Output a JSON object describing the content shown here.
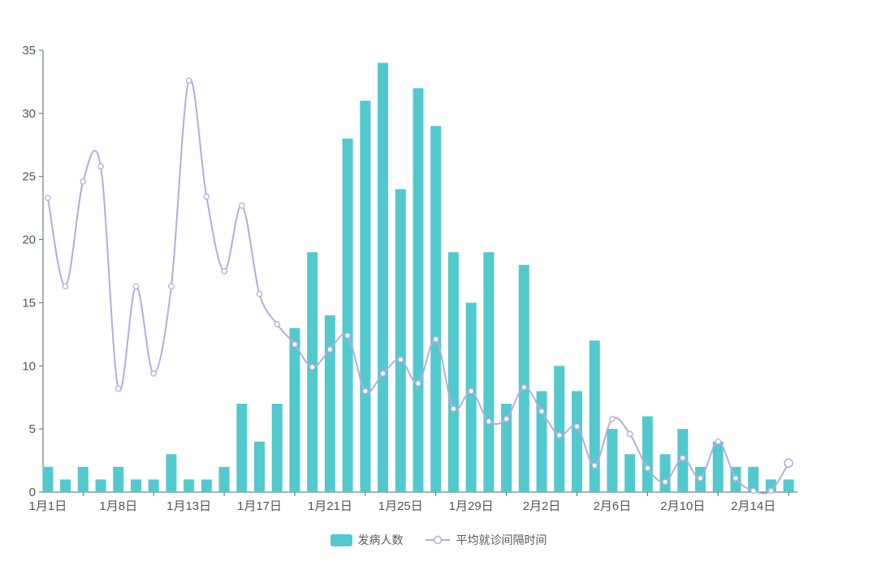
{
  "legend": {
    "items": [
      {
        "label": "发病人数",
        "type": "bar"
      },
      {
        "label": "平均就诊间隔时间",
        "type": "line"
      }
    ]
  },
  "colors": {
    "bar": "#52C9CD",
    "line": "#B4ACDE",
    "marker_fill": "#ffffff",
    "axis_line": "#4a6a6d",
    "tick_text": "#50555c"
  },
  "chart_data": {
    "type": "bar",
    "title": "",
    "xlabel": "",
    "ylabel": "",
    "grid": false,
    "legend_position": "bottom-center",
    "ylim": [
      0,
      35
    ],
    "y_ticks": [
      0,
      5,
      10,
      15,
      20,
      25,
      30,
      35
    ],
    "n_categories": 43,
    "x_tick_labels": [
      "1月1日",
      "1月8日",
      "1月13日",
      "1月17日",
      "1月21日",
      "1月25日",
      "1月29日",
      "2月2日",
      "2月6日",
      "2月10日",
      "2月14日"
    ],
    "x_tick_label_indices": [
      0,
      4,
      8,
      12,
      16,
      20,
      24,
      28,
      32,
      36,
      40
    ],
    "series": [
      {
        "name": "发病人数",
        "type": "bar",
        "color": "#52C9CD",
        "values": [
          2,
          1,
          2,
          1,
          2,
          1,
          1,
          3,
          1,
          1,
          2,
          7,
          4,
          7,
          13,
          19,
          14,
          28,
          31,
          34,
          24,
          32,
          29,
          19,
          15,
          19,
          7,
          18,
          8,
          10,
          8,
          12,
          5,
          3,
          6,
          3,
          5,
          2,
          4,
          2,
          2,
          1,
          1
        ]
      },
      {
        "name": "平均就诊间隔时间",
        "type": "line",
        "smooth": true,
        "color": "#B4ACDE",
        "marker": "hollow-circle",
        "values": [
          23.3,
          16.3,
          24.6,
          25.8,
          8.2,
          16.3,
          9.4,
          16.3,
          32.6,
          23.4,
          17.5,
          22.7,
          15.7,
          13.3,
          11.7,
          9.9,
          11.3,
          12.4,
          8.0,
          9.4,
          10.5,
          8.6,
          12.1,
          6.6,
          8.0,
          5.6,
          5.8,
          8.3,
          6.4,
          4.5,
          5.2,
          2.1,
          5.8,
          4.6,
          1.9,
          0.8,
          2.7,
          1.1,
          4.0,
          1.1,
          0.1,
          0.1,
          2.3
        ]
      }
    ]
  }
}
